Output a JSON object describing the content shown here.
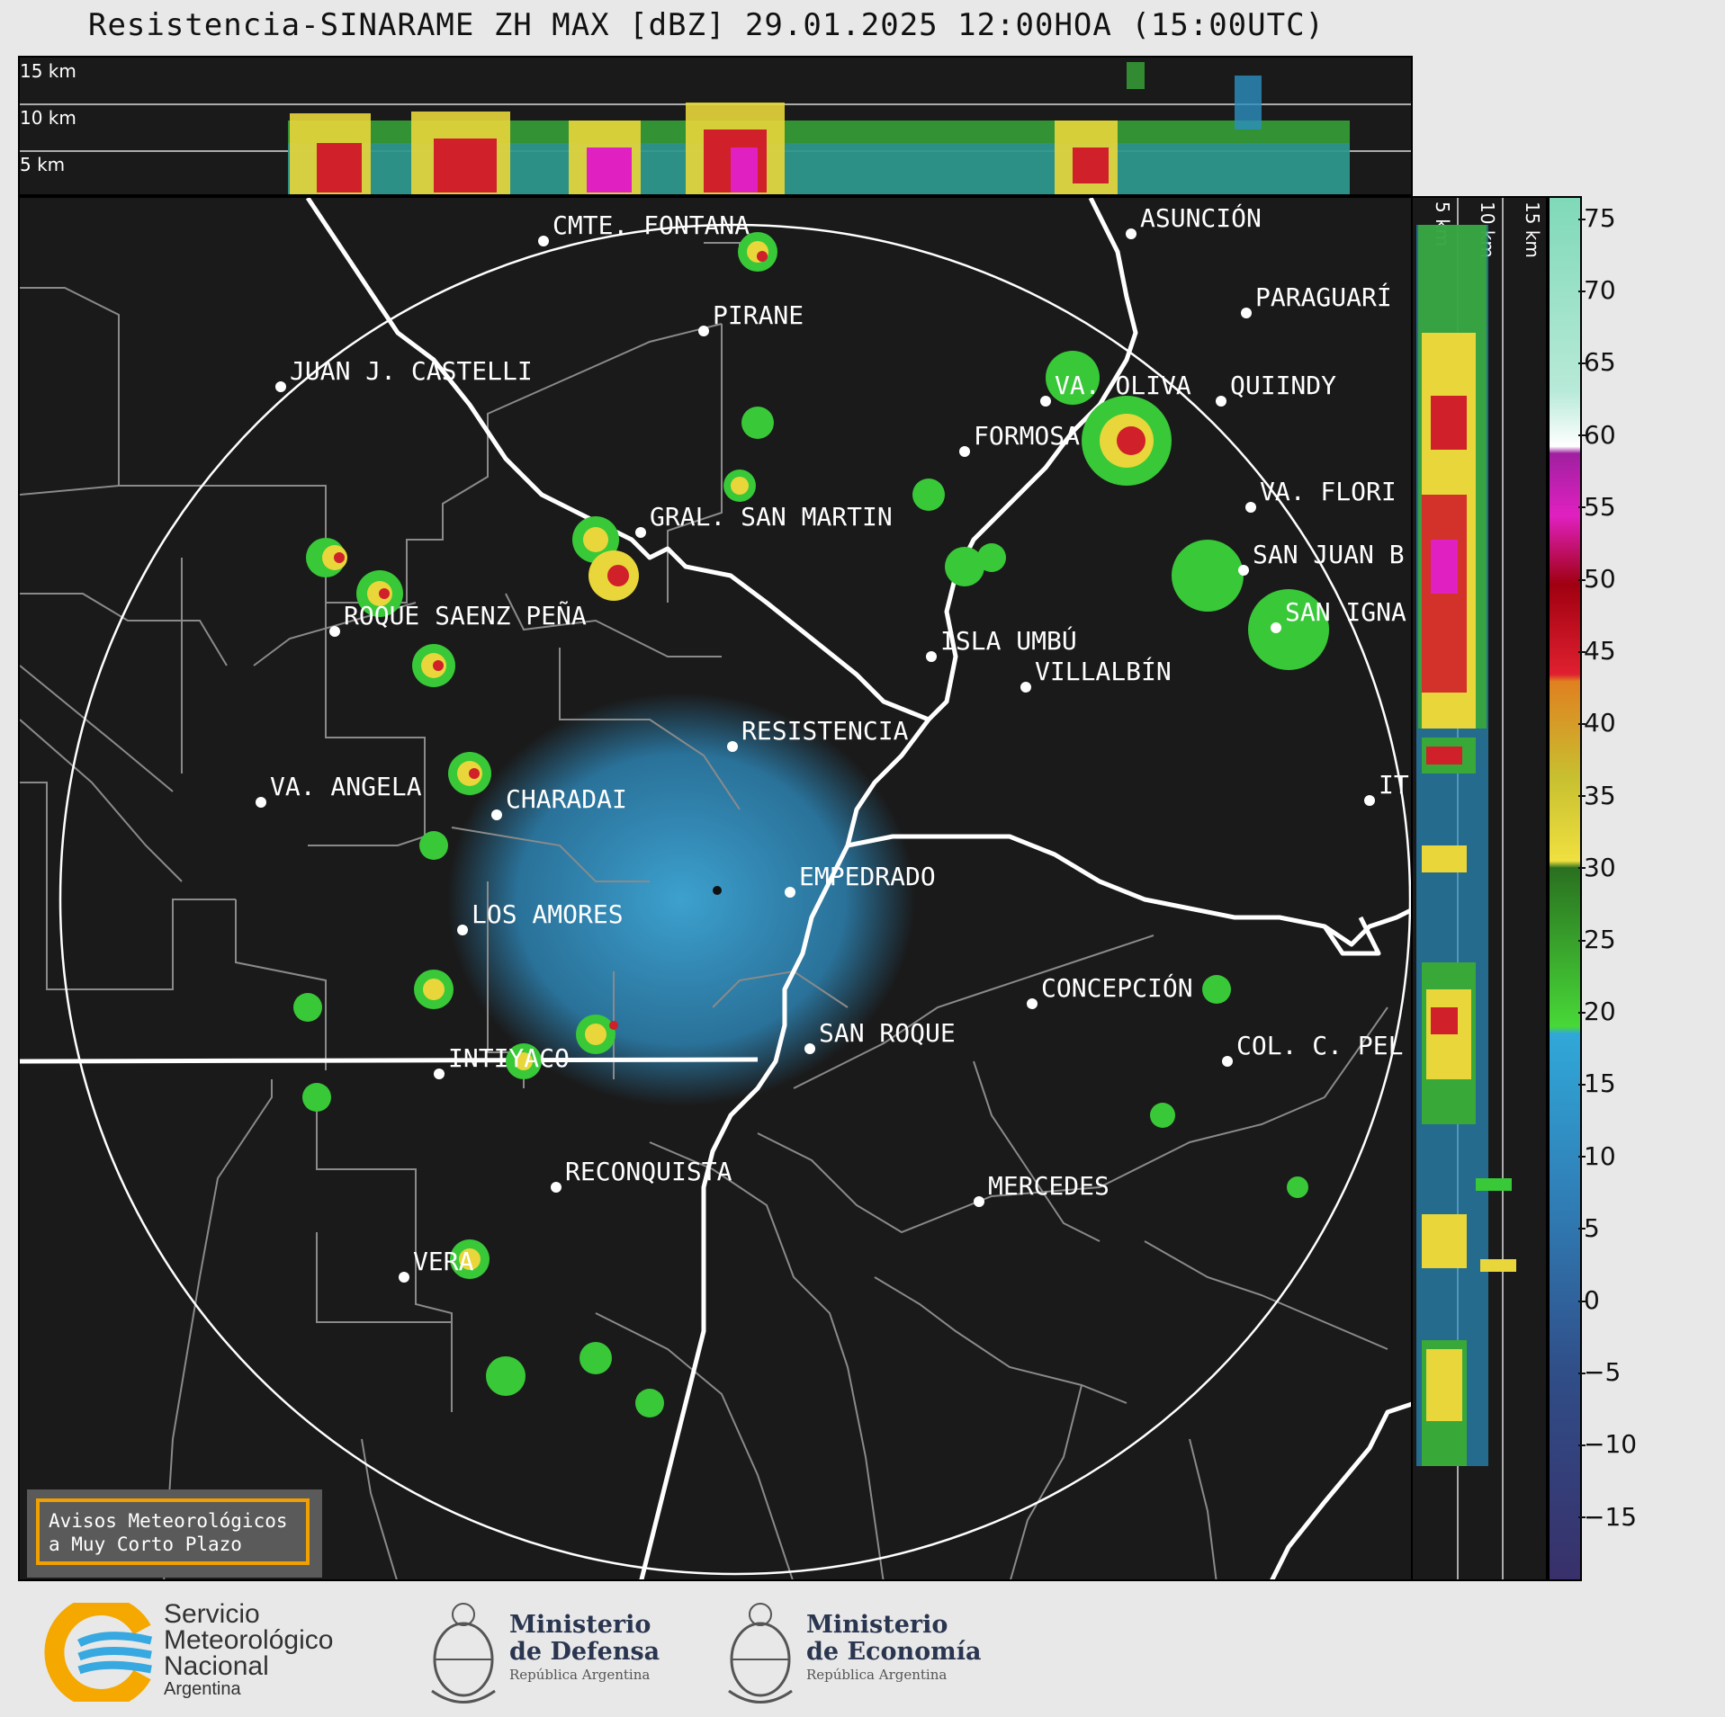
{
  "title": "Resistencia-SINARAME ZH MAX [dBZ] 29.01.2025 12:00HOA (15:00UTC)",
  "top_profile": {
    "altitudes": [
      "15 km",
      "10 km",
      "5 km"
    ]
  },
  "right_profile": {
    "altitudes": [
      "5 km",
      "10 km",
      "15 km"
    ]
  },
  "colorbar": {
    "ticks": [
      "75",
      "70",
      "65",
      "60",
      "55",
      "50",
      "45",
      "40",
      "35",
      "30",
      "25",
      "20",
      "15",
      "10",
      "5",
      "0",
      "−5",
      "−10",
      "−15"
    ]
  },
  "cities": [
    {
      "name": "CMTE. FONTANA"
    },
    {
      "name": "ASUNCIÓN"
    },
    {
      "name": "PARAGUARÍ"
    },
    {
      "name": "PIRANE"
    },
    {
      "name": "JUAN J. CASTELLI"
    },
    {
      "name": "QUIINDY"
    },
    {
      "name": "VA. OLIVA"
    },
    {
      "name": "FORMOSA"
    },
    {
      "name": "VA. FLORI"
    },
    {
      "name": "GRAL. SAN MARTIN"
    },
    {
      "name": "SAN JUAN B"
    },
    {
      "name": "ROQUE SAENZ PEÑA"
    },
    {
      "name": "SAN IGNA"
    },
    {
      "name": "ISLA UMBÚ"
    },
    {
      "name": "VILLALBÍN"
    },
    {
      "name": "RESISTENCIA"
    },
    {
      "name": "VA. ANGELA"
    },
    {
      "name": "CHARADAI"
    },
    {
      "name": "IT"
    },
    {
      "name": "EMPEDRADO"
    },
    {
      "name": "LOS AMORES"
    },
    {
      "name": "CONCEPCIÓN"
    },
    {
      "name": "SAN ROQUE"
    },
    {
      "name": "COL. C. PEL"
    },
    {
      "name": "INTIYACO"
    },
    {
      "name": "RECONQUISTA"
    },
    {
      "name": "MERCEDES"
    },
    {
      "name": "VERA"
    }
  ],
  "badge": {
    "line1": "Avisos Meteorológicos",
    "line2": "a Muy Corto Plazo"
  },
  "footer": {
    "smn": {
      "line1": "Servicio",
      "line2": "Meteorológico",
      "line3": "Nacional",
      "line4": "Argentina"
    },
    "defensa": {
      "line1": "Ministerio",
      "line2": "de Defensa",
      "line3": "República Argentina"
    },
    "economia": {
      "line1": "Ministerio",
      "line2": "de Economía",
      "line3": "República Argentina"
    }
  }
}
